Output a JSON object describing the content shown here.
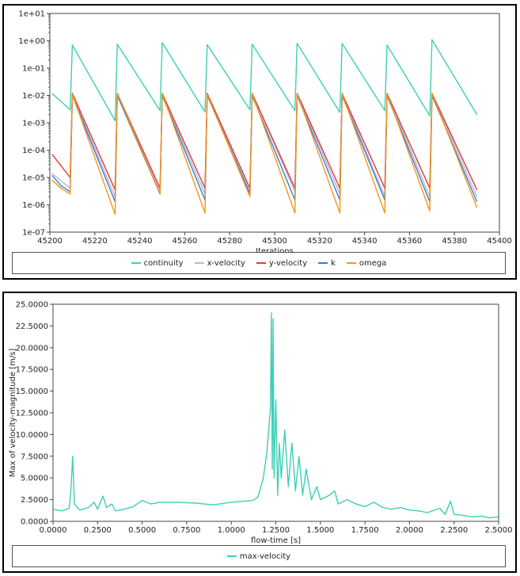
{
  "chart_data": [
    {
      "type": "line",
      "xlabel": "Iterations",
      "ylabel": "",
      "yscale": "log",
      "xlim": [
        45200,
        45400
      ],
      "ylim": [
        1e-07,
        10
      ],
      "x_ticks": [
        "45200",
        "45220",
        "45240",
        "45260",
        "45280",
        "45300",
        "45320",
        "45340",
        "45360",
        "45380",
        "45400"
      ],
      "y_ticks": [
        "1e-07",
        "1e-06",
        "1e-05",
        "1e-04",
        "1e-03",
        "1e-02",
        "1e-01",
        "1e+00",
        "1e+01"
      ],
      "grid": false,
      "legend_position": "bottom",
      "cycle_starts": [
        45210,
        45230,
        45250,
        45270,
        45290,
        45310,
        45330,
        45350,
        45370
      ],
      "series": [
        {
          "name": "continuity",
          "color": "#3dcfb6",
          "points": [
            [
              45201,
              0.012
            ],
            [
              45209,
              0.003
            ],
            [
              45210,
              0.7
            ],
            [
              45229,
              0.0012
            ],
            [
              45230,
              0.75
            ],
            [
              45249,
              0.0028
            ],
            [
              45250,
              0.85
            ],
            [
              45269,
              0.0025
            ],
            [
              45270,
              0.72
            ],
            [
              45289,
              0.003
            ],
            [
              45290,
              0.75
            ],
            [
              45309,
              0.0028
            ],
            [
              45310,
              0.8
            ],
            [
              45329,
              0.0024
            ],
            [
              45330,
              0.8
            ],
            [
              45349,
              0.0028
            ],
            [
              45350,
              0.7
            ],
            [
              45369,
              0.0018
            ],
            [
              45370,
              1.1
            ],
            [
              45390,
              0.002
            ]
          ]
        },
        {
          "name": "x-velocity",
          "color": "#b0b8f0",
          "points": [
            [
              45201,
              1.4e-05
            ],
            [
              45209,
              4e-06
            ],
            [
              45210,
              0.011
            ],
            [
              45229,
              2e-06
            ],
            [
              45230,
              0.012
            ],
            [
              45249,
              3e-06
            ],
            [
              45250,
              0.011
            ],
            [
              45269,
              2.5e-06
            ],
            [
              45270,
              0.011
            ],
            [
              45289,
              3e-06
            ],
            [
              45290,
              0.012
            ],
            [
              45309,
              3e-06
            ],
            [
              45310,
              0.012
            ],
            [
              45329,
              2.5e-06
            ],
            [
              45330,
              0.012
            ],
            [
              45349,
              2e-06
            ],
            [
              45350,
              0.012
            ],
            [
              45369,
              2e-06
            ],
            [
              45370,
              0.012
            ],
            [
              45390,
              2e-06
            ]
          ]
        },
        {
          "name": "y-velocity",
          "color": "#e83a2a",
          "points": [
            [
              45201,
              7e-05
            ],
            [
              45209,
              1e-05
            ],
            [
              45210,
              0.012
            ],
            [
              45229,
              3.5e-06
            ],
            [
              45230,
              0.012
            ],
            [
              45249,
              4e-06
            ],
            [
              45250,
              0.012
            ],
            [
              45269,
              4e-06
            ],
            [
              45270,
              0.012
            ],
            [
              45289,
              4e-06
            ],
            [
              45290,
              0.012
            ],
            [
              45309,
              4e-06
            ],
            [
              45310,
              0.012
            ],
            [
              45329,
              4e-06
            ],
            [
              45330,
              0.012
            ],
            [
              45349,
              4e-06
            ],
            [
              45350,
              0.012
            ],
            [
              45369,
              4e-06
            ],
            [
              45370,
              0.012
            ],
            [
              45390,
              3.5e-06
            ]
          ]
        },
        {
          "name": "k",
          "color": "#3a7fc8",
          "points": [
            [
              45201,
              1.2e-05
            ],
            [
              45205,
              5e-06
            ],
            [
              45209,
              3e-06
            ],
            [
              45210,
              0.01
            ],
            [
              45229,
              1.3e-06
            ],
            [
              45230,
              0.01
            ],
            [
              45249,
              2.5e-06
            ],
            [
              45250,
              0.01
            ],
            [
              45269,
              1.5e-06
            ],
            [
              45270,
              0.01
            ],
            [
              45289,
              2.5e-06
            ],
            [
              45290,
              0.01
            ],
            [
              45309,
              1.5e-06
            ],
            [
              45310,
              0.01
            ],
            [
              45329,
              1.5e-06
            ],
            [
              45330,
              0.01
            ],
            [
              45349,
              1.5e-06
            ],
            [
              45350,
              0.01
            ],
            [
              45369,
              1.3e-06
            ],
            [
              45370,
              0.01
            ],
            [
              45390,
              1.3e-06
            ]
          ]
        },
        {
          "name": "omega",
          "color": "#f0961e",
          "points": [
            [
              45201,
              8e-06
            ],
            [
              45205,
              4e-06
            ],
            [
              45209,
              2.5e-06
            ],
            [
              45210,
              0.011
            ],
            [
              45229,
              4.5e-07
            ],
            [
              45230,
              0.012
            ],
            [
              45249,
              2.5e-06
            ],
            [
              45250,
              0.012
            ],
            [
              45269,
              5e-07
            ],
            [
              45270,
              0.011
            ],
            [
              45289,
              2e-06
            ],
            [
              45290,
              0.012
            ],
            [
              45309,
              5e-07
            ],
            [
              45310,
              0.012
            ],
            [
              45329,
              5e-07
            ],
            [
              45330,
              0.012
            ],
            [
              45349,
              5e-07
            ],
            [
              45350,
              0.012
            ],
            [
              45369,
              6e-07
            ],
            [
              45370,
              0.012
            ],
            [
              45390,
              8e-07
            ]
          ]
        }
      ]
    },
    {
      "type": "line",
      "xlabel": "flow-time [s]",
      "ylabel": "Max of velocity-magnitude [m/s]",
      "xlim": [
        0,
        2.5
      ],
      "ylim": [
        0,
        25
      ],
      "x_ticks": [
        "0.0000",
        "0.2500",
        "0.5000",
        "0.7500",
        "1.0000",
        "1.2500",
        "1.5000",
        "1.7500",
        "2.0000",
        "2.2500",
        "2.5000"
      ],
      "y_ticks": [
        "0.0000",
        "2.5000",
        "5.0000",
        "7.5000",
        "10.0000",
        "12.5000",
        "15.0000",
        "17.5000",
        "20.0000",
        "22.5000",
        "25.0000"
      ],
      "grid": false,
      "legend_position": "bottom",
      "series": [
        {
          "name": "max-velocity",
          "color": "#3dcfb6",
          "points": [
            [
              0,
              1.4
            ],
            [
              0.05,
              1.2
            ],
            [
              0.09,
              1.5
            ],
            [
              0.1,
              3.5
            ],
            [
              0.11,
              7.5
            ],
            [
              0.12,
              2.0
            ],
            [
              0.15,
              1.3
            ],
            [
              0.2,
              1.6
            ],
            [
              0.23,
              2.2
            ],
            [
              0.25,
              1.4
            ],
            [
              0.28,
              2.9
            ],
            [
              0.3,
              1.6
            ],
            [
              0.33,
              2.0
            ],
            [
              0.35,
              1.2
            ],
            [
              0.4,
              1.4
            ],
            [
              0.45,
              1.7
            ],
            [
              0.5,
              2.4
            ],
            [
              0.55,
              2.0
            ],
            [
              0.6,
              2.2
            ],
            [
              0.7,
              2.2
            ],
            [
              0.8,
              2.1
            ],
            [
              0.9,
              1.9
            ],
            [
              1.0,
              2.2
            ],
            [
              1.12,
              2.4
            ],
            [
              1.15,
              2.8
            ],
            [
              1.18,
              5.0
            ],
            [
              1.2,
              8.0
            ],
            [
              1.22,
              13.0
            ],
            [
              1.225,
              24.0
            ],
            [
              1.23,
              6.0
            ],
            [
              1.235,
              23.3
            ],
            [
              1.24,
              5.0
            ],
            [
              1.25,
              14.0
            ],
            [
              1.26,
              3.0
            ],
            [
              1.27,
              9.0
            ],
            [
              1.28,
              5.0
            ],
            [
              1.3,
              10.5
            ],
            [
              1.32,
              4.0
            ],
            [
              1.34,
              9.0
            ],
            [
              1.36,
              3.5
            ],
            [
              1.38,
              7.5
            ],
            [
              1.4,
              3.0
            ],
            [
              1.42,
              6.0
            ],
            [
              1.45,
              2.5
            ],
            [
              1.48,
              4.0
            ],
            [
              1.5,
              2.5
            ],
            [
              1.55,
              3.0
            ],
            [
              1.58,
              3.5
            ],
            [
              1.6,
              2.0
            ],
            [
              1.65,
              2.5
            ],
            [
              1.7,
              2.0
            ],
            [
              1.75,
              1.7
            ],
            [
              1.8,
              2.2
            ],
            [
              1.85,
              1.6
            ],
            [
              1.9,
              1.4
            ],
            [
              1.95,
              1.6
            ],
            [
              2.0,
              1.3
            ],
            [
              2.05,
              1.2
            ],
            [
              2.1,
              1.0
            ],
            [
              2.17,
              1.5
            ],
            [
              2.2,
              0.8
            ],
            [
              2.23,
              2.3
            ],
            [
              2.25,
              0.8
            ],
            [
              2.3,
              0.7
            ],
            [
              2.35,
              0.5
            ],
            [
              2.4,
              0.6
            ],
            [
              2.45,
              0.4
            ],
            [
              2.5,
              0.5
            ]
          ]
        }
      ]
    }
  ]
}
